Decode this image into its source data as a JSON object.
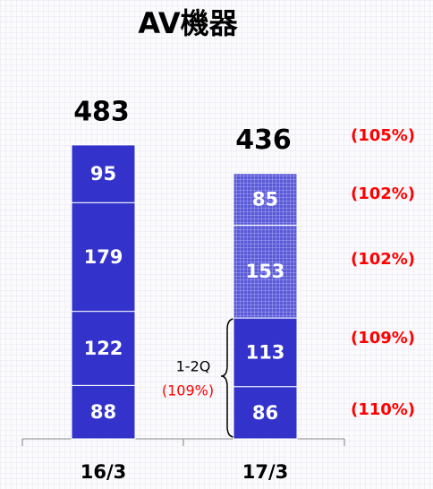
{
  "chart_data": {
    "type": "stacked_bar",
    "title": "AV機器",
    "categories": [
      "16/3",
      "17/3"
    ],
    "series": [
      {
        "color": "#3333cc",
        "values": [
          88,
          86
        ],
        "hatched": [
          false,
          false
        ]
      },
      {
        "color": "#3333cc",
        "values": [
          122,
          113
        ],
        "hatched": [
          false,
          false
        ]
      },
      {
        "color": "#3333cc",
        "values": [
          179,
          153
        ],
        "hatched": [
          false,
          true
        ]
      },
      {
        "color": "#3333cc",
        "values": [
          95,
          85
        ],
        "hatched": [
          false,
          true
        ]
      }
    ],
    "totals": [
      483,
      436
    ],
    "growth_labels": [
      "(110%)",
      "(109%)",
      "(102%)",
      "(102%)"
    ],
    "total_growth_label": "(105%)",
    "bracket_label": "1-2Q",
    "bracket_growth_label": "(109%)"
  }
}
